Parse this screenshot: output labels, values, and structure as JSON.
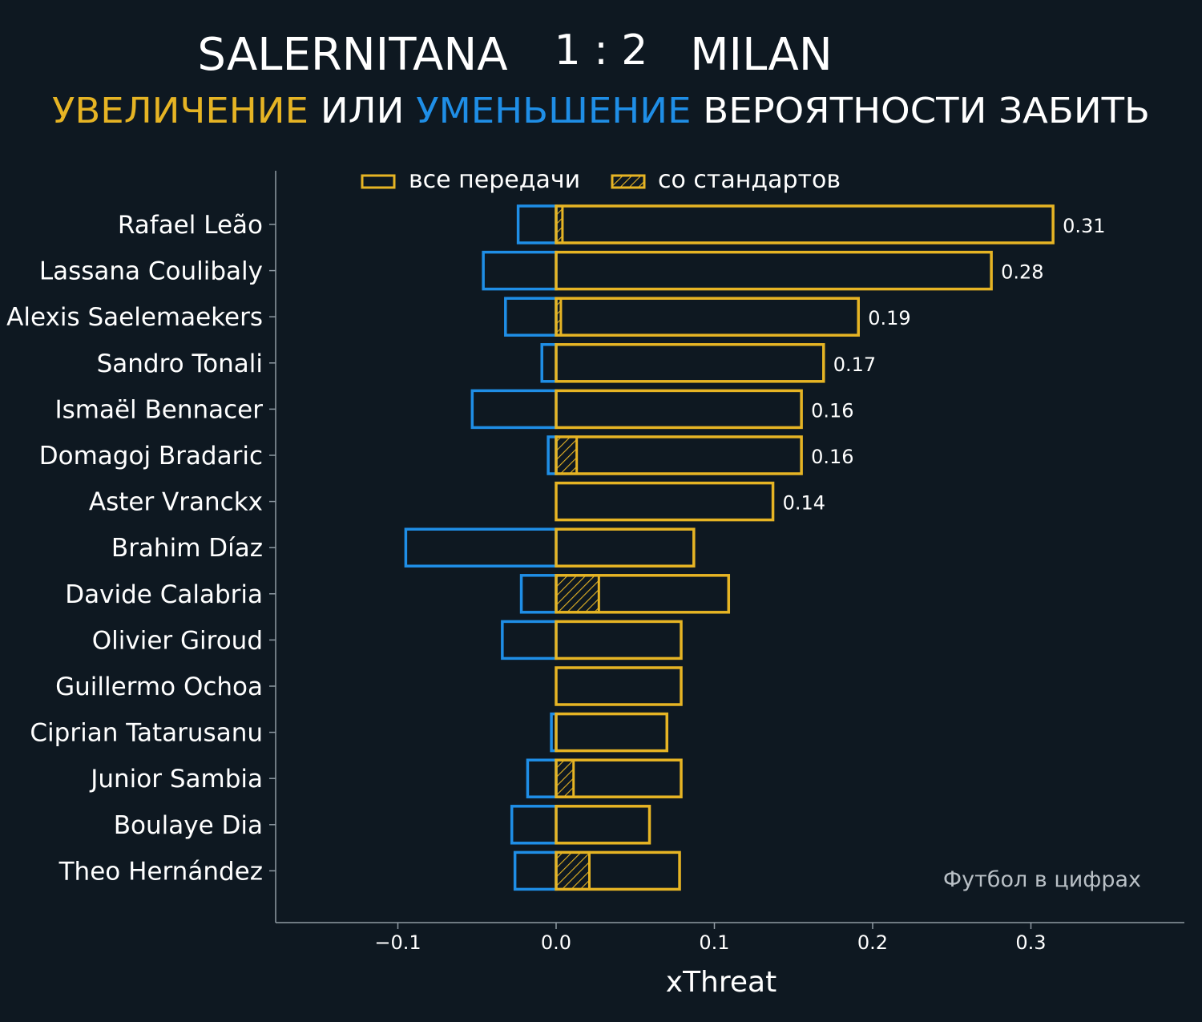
{
  "header": {
    "home_team": "SALERNITANA",
    "score": "1 : 2",
    "away_team": "MILAN",
    "subtitle_increase": "УВЕЛИЧЕНИЕ",
    "subtitle_or": "ИЛИ",
    "subtitle_decrease": "УМЕНЬШЕНИЕ",
    "subtitle_rest": "ВЕРОЯТНОСТИ ЗАБИТЬ"
  },
  "legend": {
    "all_passes": "все передачи",
    "set_pieces": "со стандартов"
  },
  "watermark": "Футбол в цифрах",
  "colors": {
    "background": "#0e1821",
    "increase": "#e6b424",
    "decrease": "#1f8ee6",
    "axis": "#8f9aa3",
    "text": "#ffffff"
  },
  "chart_data": {
    "type": "bar",
    "orientation": "horizontal",
    "xlabel": "xThreat",
    "xlim": [
      -0.176,
      0.396
    ],
    "xticks": [
      -0.1,
      0.0,
      0.1,
      0.2,
      0.3
    ],
    "xtick_labels": [
      "−0.1",
      "0.0",
      "0.1",
      "0.2",
      "0.3"
    ],
    "categories": [
      "Rafael Leão",
      "Lassana Coulibaly",
      "Alexis Saelemaekers",
      "Sandro Tonali",
      "Ismaël Bennacer",
      "Domagoj Bradaric",
      "Aster Vranckx",
      "Brahim Díaz",
      "Davide Calabria",
      "Olivier Giroud",
      "Guillermo Ochoa",
      "Ciprian Tatarusanu",
      "Junior Sambia",
      "Boulaye Dia",
      "Theo Hernández"
    ],
    "series": [
      {
        "name": "все передачи",
        "key": "positive",
        "values": [
          0.314,
          0.275,
          0.191,
          0.169,
          0.155,
          0.155,
          0.137,
          0.087,
          0.109,
          0.079,
          0.079,
          0.07,
          0.079,
          0.059,
          0.078
        ]
      },
      {
        "key": "negative",
        "values": [
          -0.024,
          -0.046,
          -0.032,
          -0.009,
          -0.053,
          -0.005,
          0.0,
          -0.095,
          -0.022,
          -0.034,
          0.0,
          -0.003,
          -0.018,
          -0.028,
          -0.026
        ]
      },
      {
        "name": "со стандартов",
        "key": "set_pieces",
        "values": [
          0.004,
          0.0,
          0.003,
          0.0,
          0.0,
          0.013,
          0.0,
          0.0,
          0.027,
          0.0,
          0.0,
          0.0,
          0.011,
          0.0,
          0.021
        ]
      }
    ],
    "value_labels": [
      "0.31",
      "0.28",
      "0.19",
      "0.17",
      "0.16",
      "0.16",
      "0.14",
      "",
      "",
      "",
      "",
      "",
      "",
      "",
      ""
    ],
    "legend_position": "top",
    "grid": false
  }
}
